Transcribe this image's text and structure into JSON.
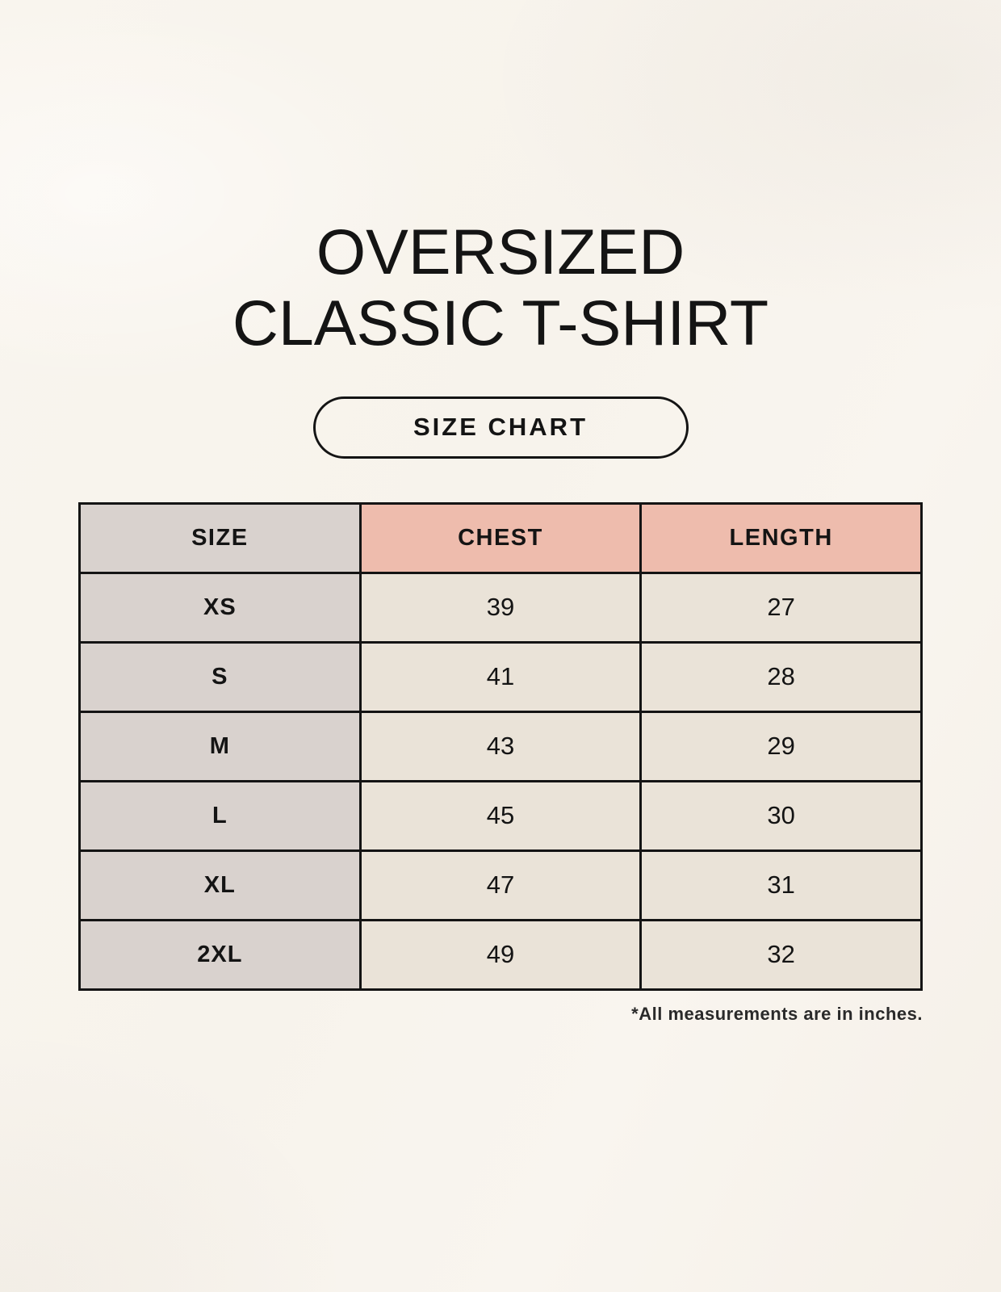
{
  "page": {
    "title_line1": "OVERSIZED",
    "title_line2": "CLASSIC T-SHIRT",
    "badge_label": "SIZE CHART",
    "footnote": "*All measurements are in inches."
  },
  "table": {
    "headers": [
      "SIZE",
      "CHEST",
      "LENGTH"
    ],
    "rows": [
      {
        "size": "XS",
        "chest": "39",
        "length": "27"
      },
      {
        "size": "S",
        "chest": "41",
        "length": "28"
      },
      {
        "size": "M",
        "chest": "43",
        "length": "29"
      },
      {
        "size": "L",
        "chest": "45",
        "length": "30"
      },
      {
        "size": "XL",
        "chest": "47",
        "length": "31"
      },
      {
        "size": "2XL",
        "chest": "49",
        "length": "32"
      }
    ],
    "units": "inches"
  },
  "colors": {
    "background_cream": "#f8f4ed",
    "header_pink": "#eebcad",
    "size_column_gray": "#d9d2ce",
    "value_cell_beige": "#eae3d8",
    "border_black": "#141414",
    "text_black": "#141414"
  }
}
